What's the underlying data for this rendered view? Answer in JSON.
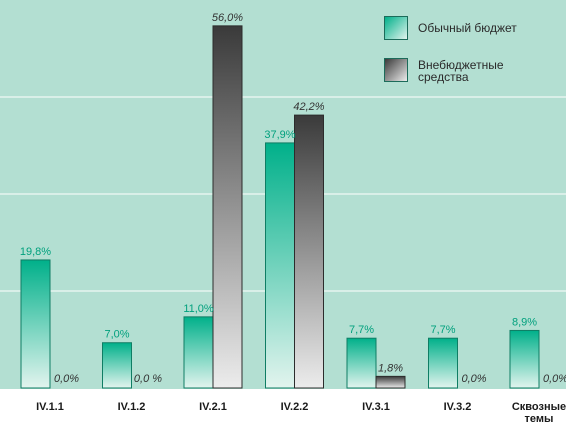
{
  "chart_data": {
    "type": "bar",
    "categories": [
      "IV.1.1",
      "IV.1.2",
      "IV.2.1",
      "IV.2.2",
      "IV.3.1",
      "IV.3.2",
      "Сквозные темы"
    ],
    "category_lines": [
      [
        "IV.1.1"
      ],
      [
        "IV.1.2"
      ],
      [
        "IV.2.1"
      ],
      [
        "IV.2.2"
      ],
      [
        "IV.3.1"
      ],
      [
        "IV.3.2"
      ],
      [
        "Сквозные",
        "темы"
      ]
    ],
    "series": [
      {
        "name": "Обычный бюджет",
        "values": [
          19.8,
          7.0,
          11.0,
          37.9,
          7.7,
          7.7,
          8.9
        ],
        "labels": [
          "19,8%",
          "7,0%",
          "11,0%",
          "37,9%",
          "7,7%",
          "7,7%",
          "8,9%"
        ],
        "color_top": "#00b08a",
        "color_bottom": "#e2f4ee"
      },
      {
        "name": "Внебюджетные средства",
        "values": [
          0.0,
          0.0,
          56.0,
          42.2,
          1.8,
          0.0,
          0.0
        ],
        "labels": [
          "0,0%",
          "0,0 %",
          "56,0%",
          "42,2%",
          "1,8%",
          "0,0%",
          "0,0%"
        ],
        "color_top": "#3a3a3a",
        "color_bottom": "#ececec"
      }
    ],
    "ylim": [
      0,
      60
    ],
    "grid": true,
    "legend": "top-right",
    "plot_background": "#b3dfd2",
    "grid_color": "#ffffff"
  }
}
